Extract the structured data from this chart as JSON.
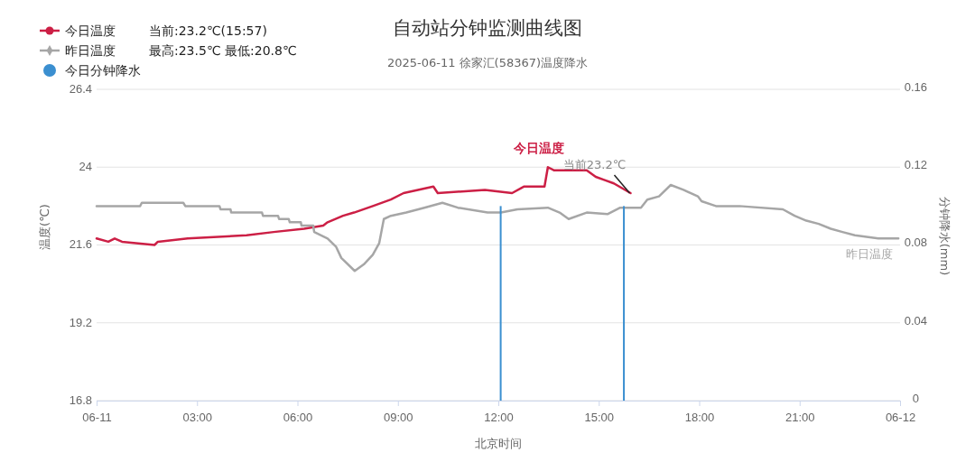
{
  "chart_data": {
    "type": "line",
    "title": "自动站分钟监测曲线图",
    "subtitle": "2025-06-11 徐家汇(58367)温度降水",
    "xlabel": "北京时间",
    "ylabel": "温度(℃)",
    "y2label": "分钟降水(mm)",
    "xlim": [
      0,
      24
    ],
    "xticks": [
      {
        "value": 0,
        "label": "06-11"
      },
      {
        "value": 3,
        "label": "03:00"
      },
      {
        "value": 6,
        "label": "06:00"
      },
      {
        "value": 9,
        "label": "09:00"
      },
      {
        "value": 12,
        "label": "12:00"
      },
      {
        "value": 15,
        "label": "15:00"
      },
      {
        "value": 18,
        "label": "18:00"
      },
      {
        "value": 21,
        "label": "21:00"
      },
      {
        "value": 24,
        "label": "06-12"
      }
    ],
    "ylim": [
      16.8,
      26.4
    ],
    "yticks": [
      16.8,
      19.2,
      21.6,
      24,
      26.4
    ],
    "y2lim": [
      0,
      0.16
    ],
    "y2ticks": [
      0,
      0.04,
      0.08,
      0.12,
      0.16
    ],
    "grid": "y",
    "legend": "top left",
    "series": [
      {
        "name": "今日温度",
        "color": "#cc1f45",
        "x": [
          0,
          0.35,
          0.54,
          0.76,
          1.73,
          1.83,
          2.72,
          4.48,
          5.29,
          6.2,
          6.77,
          6.9,
          7.36,
          7.69,
          8.25,
          8.79,
          9.17,
          10.06,
          10.19,
          11.6,
          12.41,
          12.76,
          13.38,
          13.48,
          13.67,
          14.64,
          14.91,
          15.18,
          15.45,
          15.95
        ],
        "values": [
          21.8,
          21.7,
          21.8,
          21.7,
          21.6,
          21.7,
          21.8,
          21.9,
          22.0,
          22.1,
          22.2,
          22.3,
          22.5,
          22.6,
          22.8,
          23.0,
          23.2,
          23.4,
          23.2,
          23.3,
          23.2,
          23.4,
          23.4,
          24.0,
          23.9,
          23.9,
          23.7,
          23.6,
          23.5,
          23.2
        ]
      },
      {
        "name": "昨日温度",
        "color": "#a6a6a6",
        "x": [
          0,
          1.3,
          1.35,
          2.59,
          2.65,
          3.67,
          3.7,
          4.0,
          4.02,
          4.94,
          4.97,
          5.42,
          5.45,
          5.74,
          5.77,
          6.1,
          6.12,
          6.47,
          6.5,
          6.9,
          7.15,
          7.31,
          7.71,
          7.98,
          8.25,
          8.44,
          8.58,
          8.79,
          9.25,
          9.79,
          10.33,
          10.79,
          11.68,
          12.08,
          12.57,
          13.48,
          13.83,
          14.1,
          14.64,
          15.26,
          15.64,
          16.26,
          16.45,
          16.8,
          17.15,
          17.53,
          17.96,
          18.07,
          18.5,
          19.2,
          20.5,
          20.85,
          21.2,
          21.57,
          21.93,
          22.28,
          22.65,
          23.35,
          23.95
        ],
        "values": [
          22.8,
          22.8,
          22.9,
          22.9,
          22.8,
          22.8,
          22.7,
          22.7,
          22.6,
          22.6,
          22.5,
          22.5,
          22.4,
          22.4,
          22.3,
          22.3,
          22.2,
          22.2,
          22.0,
          21.8,
          21.55,
          21.2,
          20.8,
          21.0,
          21.3,
          21.65,
          22.4,
          22.5,
          22.6,
          22.75,
          22.9,
          22.75,
          22.6,
          22.6,
          22.7,
          22.75,
          22.6,
          22.4,
          22.6,
          22.55,
          22.75,
          22.75,
          23.0,
          23.1,
          23.45,
          23.3,
          23.1,
          22.95,
          22.8,
          22.8,
          22.7,
          22.5,
          22.35,
          22.25,
          22.1,
          22.0,
          21.9,
          21.8,
          21.8
        ]
      },
      {
        "name": "今日分钟降水",
        "type": "bar",
        "axis": "y2",
        "color": "#3b8fd0",
        "x": [
          12.07,
          15.75
        ],
        "values": [
          0.1,
          0.1
        ]
      }
    ],
    "annotations": [
      "当前:23.2℃(15:57)",
      "最高:23.5℃ 最低:20.8℃",
      {
        "text": "当前23.2℃",
        "x": 15.95,
        "y": 23.2
      }
    ]
  }
}
